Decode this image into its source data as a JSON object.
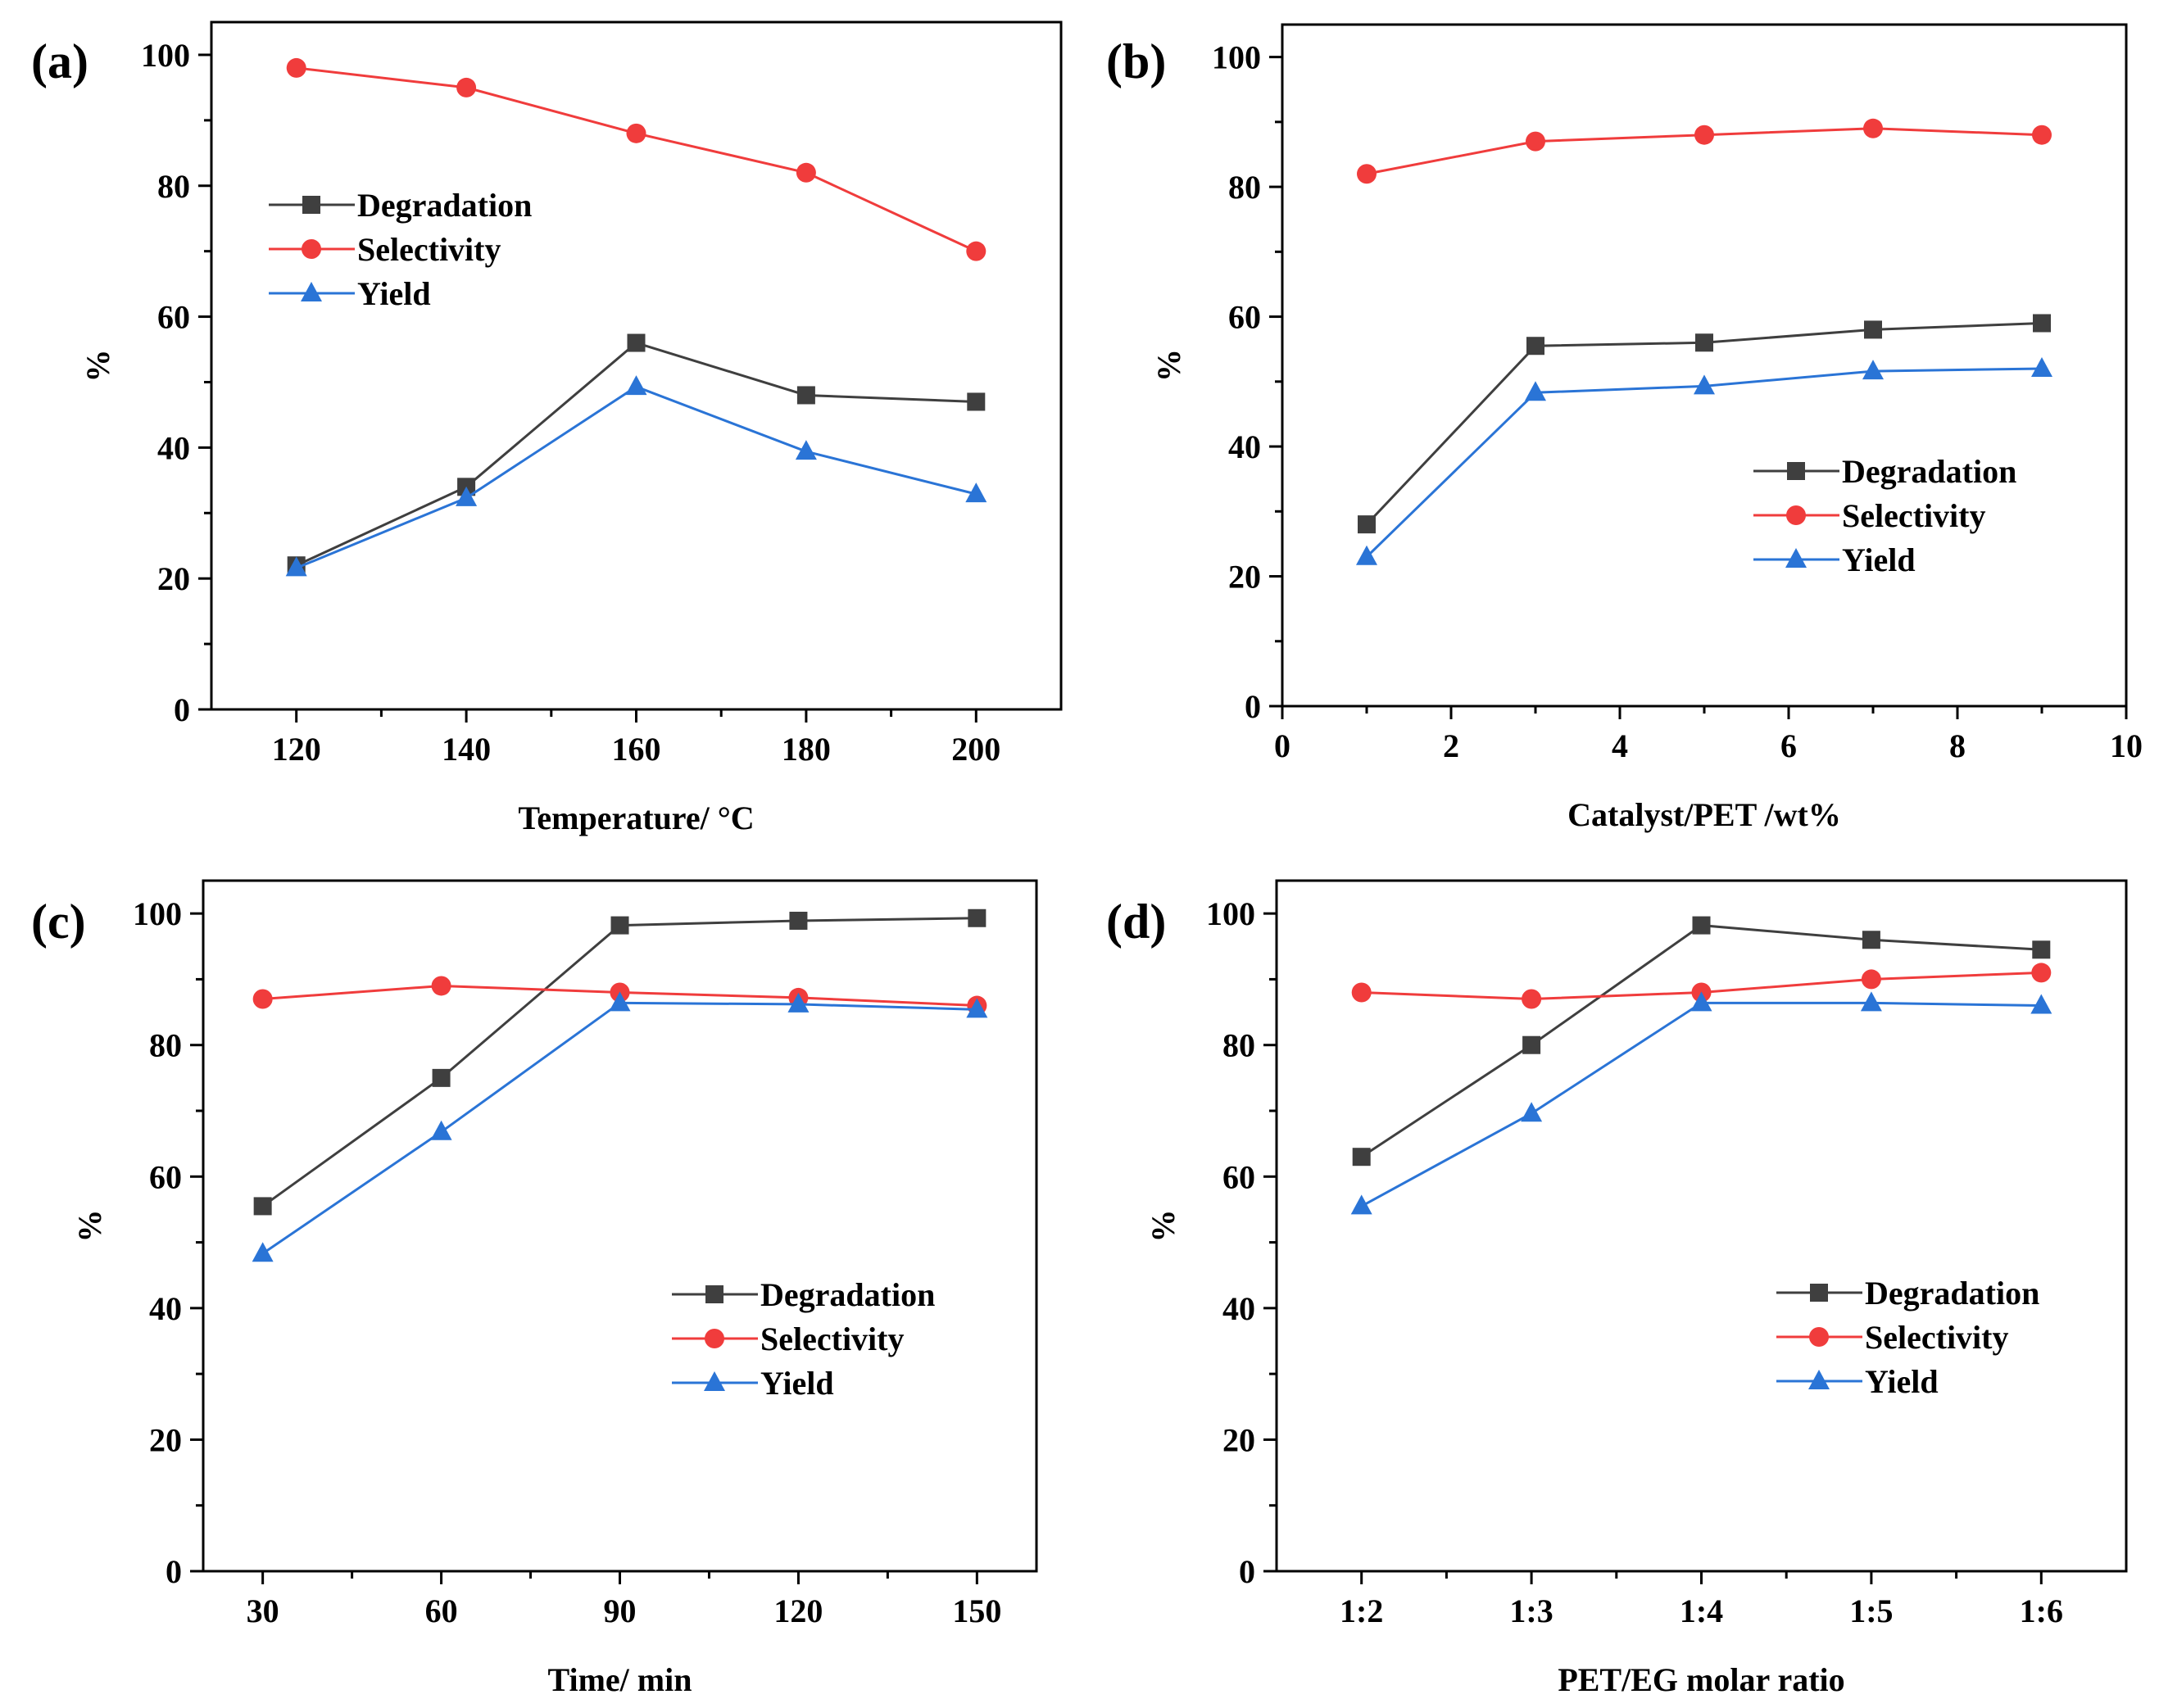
{
  "figure_title": "",
  "chart_data": [
    {
      "type": "line",
      "panel": "(a)",
      "xlabel": "Temperature/ °C",
      "ylabel": "%",
      "x_scale": "linear",
      "xlim": [
        110,
        210
      ],
      "ylim": [
        0,
        105
      ],
      "x": [
        120,
        140,
        160,
        180,
        200
      ],
      "xticks": [
        120,
        140,
        160,
        180,
        200
      ],
      "xtick_labels": [
        "120",
        "140",
        "160",
        "180",
        "200"
      ],
      "yticks": [
        0,
        20,
        40,
        60,
        80,
        100
      ],
      "legend_position": "upper-left",
      "series": [
        {
          "name": "Degradation",
          "values": [
            22,
            34,
            56,
            48,
            47
          ]
        },
        {
          "name": "Selectivity",
          "values": [
            98,
            95,
            88,
            82,
            70
          ]
        },
        {
          "name": "Yield",
          "values": [
            21.6,
            32.3,
            49.3,
            39.4,
            32.9
          ]
        }
      ]
    },
    {
      "type": "line",
      "panel": "(b)",
      "xlabel": "Catalyst/PET  /wt%",
      "ylabel": "%",
      "x_scale": "linear",
      "xlim": [
        0,
        10
      ],
      "ylim": [
        0,
        105
      ],
      "x": [
        1,
        3,
        5,
        7,
        9
      ],
      "xticks": [
        0,
        2,
        4,
        6,
        8,
        10
      ],
      "xtick_labels": [
        "0",
        "2",
        "4",
        "6",
        "8",
        "10"
      ],
      "yticks": [
        0,
        20,
        40,
        60,
        80,
        100
      ],
      "legend_position": "center-right",
      "series": [
        {
          "name": "Degradation",
          "values": [
            28,
            55.5,
            56,
            58,
            59
          ]
        },
        {
          "name": "Selectivity",
          "values": [
            82,
            87,
            88,
            89,
            88
          ]
        },
        {
          "name": "Yield",
          "values": [
            23,
            48.3,
            49.3,
            51.6,
            52
          ]
        }
      ]
    },
    {
      "type": "line",
      "panel": "(c)",
      "xlabel": "Time/ min",
      "ylabel": "%",
      "x_scale": "linear",
      "xlim": [
        20,
        160
      ],
      "ylim": [
        0,
        105
      ],
      "x": [
        30,
        60,
        90,
        120,
        150
      ],
      "xticks": [
        30,
        60,
        90,
        120,
        150
      ],
      "xtick_labels": [
        "30",
        "60",
        "90",
        "120",
        "150"
      ],
      "yticks": [
        0,
        20,
        40,
        60,
        80,
        100
      ],
      "legend_position": "center-right",
      "series": [
        {
          "name": "Degradation",
          "values": [
            55.5,
            75,
            98.2,
            98.9,
            99.3
          ]
        },
        {
          "name": "Selectivity",
          "values": [
            87,
            89,
            88,
            87.2,
            86
          ]
        },
        {
          "name": "Yield",
          "values": [
            48.3,
            66.8,
            86.4,
            86.2,
            85.4
          ]
        }
      ]
    },
    {
      "type": "line",
      "panel": "(d)",
      "xlabel": "PET/EG  molar ratio",
      "ylabel": "%",
      "x_scale": "category",
      "xlim": [
        0.5,
        5.5
      ],
      "ylim": [
        0,
        105
      ],
      "x": [
        1,
        2,
        3,
        4,
        5
      ],
      "xticks": [
        1,
        2,
        3,
        4,
        5
      ],
      "xtick_labels": [
        "1:2",
        "1:3",
        "1:4",
        "1:5",
        "1:6"
      ],
      "yticks": [
        0,
        20,
        40,
        60,
        80,
        100
      ],
      "legend_position": "center-right",
      "series": [
        {
          "name": "Degradation",
          "values": [
            63,
            80,
            98.2,
            96,
            94.5
          ]
        },
        {
          "name": "Selectivity",
          "values": [
            88,
            87,
            88,
            90,
            91
          ]
        },
        {
          "name": "Yield",
          "values": [
            55.5,
            69.6,
            86.4,
            86.4,
            86
          ]
        }
      ]
    }
  ],
  "colors": {
    "Degradation": "#3f3f3f",
    "Selectivity": "#f03c3c",
    "Yield": "#2a74d6",
    "axis": "#000000"
  },
  "markers": {
    "Degradation": "square",
    "Selectivity": "circle",
    "Yield": "triangle"
  }
}
